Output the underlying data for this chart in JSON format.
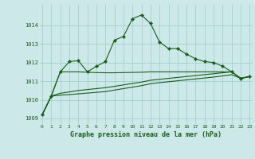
{
  "title": "Graphe pression niveau de la mer (hPa)",
  "bg_color": "#cce8e8",
  "line_color": "#1a5c1a",
  "grid_color": "#99cccc",
  "x_ticks": [
    0,
    1,
    2,
    3,
    4,
    5,
    6,
    7,
    8,
    9,
    10,
    11,
    12,
    13,
    14,
    15,
    16,
    17,
    18,
    19,
    20,
    21,
    22,
    23
  ],
  "y_ticks": [
    1009,
    1010,
    1011,
    1012,
    1013,
    1014
  ],
  "ylim": [
    1008.7,
    1015.1
  ],
  "xlim": [
    -0.3,
    23.3
  ],
  "series1": [
    1009.2,
    1010.2,
    1011.5,
    1012.05,
    1012.1,
    1011.5,
    1011.8,
    1012.05,
    1013.2,
    1013.4,
    1014.35,
    1014.55,
    1014.1,
    1013.1,
    1012.75,
    1012.75,
    1012.45,
    1012.2,
    1012.05,
    1012.0,
    1011.8,
    1011.5,
    1011.15,
    1011.25
  ],
  "series2": [
    1009.2,
    1010.2,
    1011.5,
    1011.5,
    1011.5,
    1011.48,
    1011.46,
    1011.45,
    1011.45,
    1011.46,
    1011.47,
    1011.48,
    1011.5,
    1011.5,
    1011.5,
    1011.5,
    1011.5,
    1011.5,
    1011.5,
    1011.5,
    1011.5,
    1011.5,
    1011.15,
    1011.25
  ],
  "series3": [
    1009.2,
    1010.2,
    1010.35,
    1010.42,
    1010.5,
    1010.55,
    1010.6,
    1010.65,
    1010.72,
    1010.8,
    1010.88,
    1010.95,
    1011.05,
    1011.1,
    1011.15,
    1011.2,
    1011.25,
    1011.3,
    1011.35,
    1011.4,
    1011.45,
    1011.5,
    1011.15,
    1011.25
  ],
  "series4": [
    1009.2,
    1010.2,
    1010.25,
    1010.28,
    1010.32,
    1010.36,
    1010.4,
    1010.44,
    1010.52,
    1010.6,
    1010.68,
    1010.76,
    1010.86,
    1010.92,
    1010.97,
    1011.02,
    1011.07,
    1011.12,
    1011.17,
    1011.22,
    1011.28,
    1011.35,
    1011.15,
    1011.25
  ],
  "title_fontsize": 6,
  "tick_fontsize": 5,
  "linewidth": 0.8,
  "marker": "D",
  "markersize": 2.2
}
